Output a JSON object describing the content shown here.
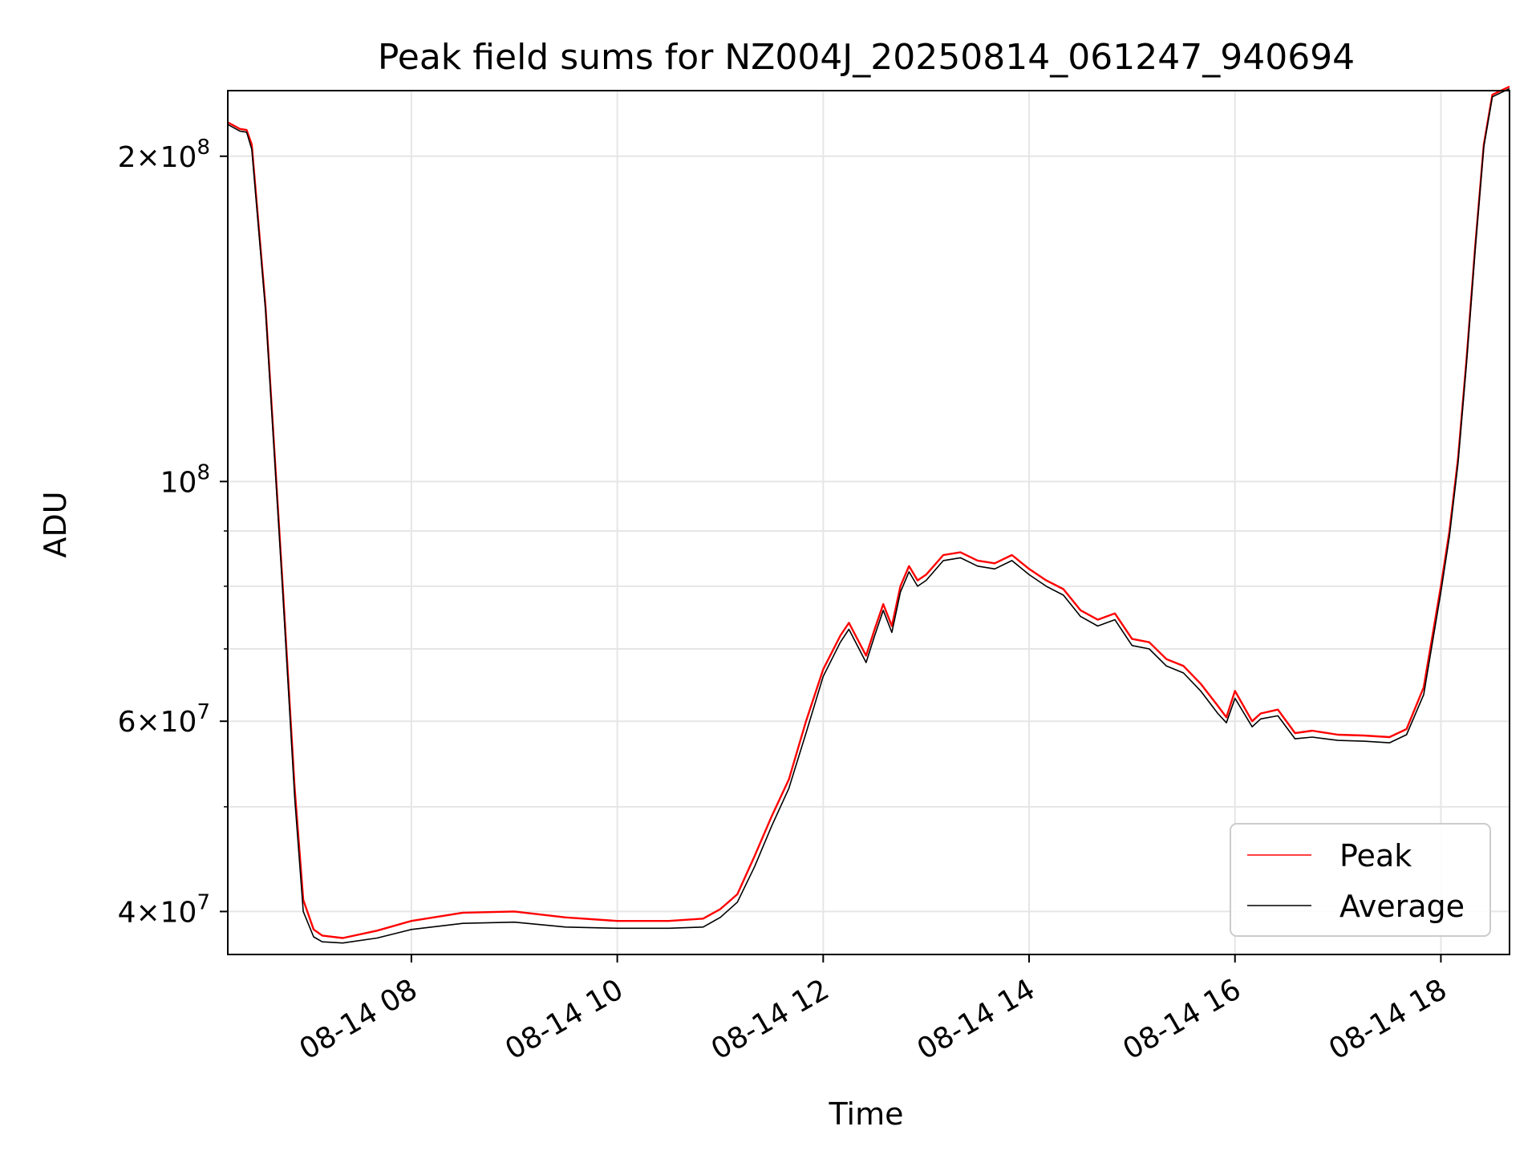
{
  "chart_data": {
    "type": "line",
    "title": "Peak field sums for NZ004J_20250814_061247_940694",
    "xlabel": "Time",
    "ylabel": "ADU",
    "y_scale": "log",
    "grid": true,
    "legend_position": "lower-right",
    "xlim": [
      "2025-08-14 06:13",
      "2025-08-14 18:40"
    ],
    "ylim": [
      36500000,
      230000000
    ],
    "x_ticks": [
      {
        "value": "2025-08-14 08:00",
        "label": "08-14 08"
      },
      {
        "value": "2025-08-14 10:00",
        "label": "08-14 10"
      },
      {
        "value": "2025-08-14 12:00",
        "label": "08-14 12"
      },
      {
        "value": "2025-08-14 14:00",
        "label": "08-14 14"
      },
      {
        "value": "2025-08-14 16:00",
        "label": "08-14 16"
      },
      {
        "value": "2025-08-14 18:00",
        "label": "08-14 18"
      }
    ],
    "y_ticks": [
      {
        "value": 40000000,
        "mantissa": "4",
        "exponent": "7"
      },
      {
        "value": 60000000,
        "mantissa": "6",
        "exponent": "7"
      },
      {
        "value": 100000000,
        "mantissa": "",
        "exponent": "8"
      },
      {
        "value": 200000000,
        "mantissa": "2",
        "exponent": "8"
      }
    ],
    "y_minor_ticks": [
      50000000,
      70000000,
      80000000,
      90000000
    ],
    "series": [
      {
        "name": "Peak",
        "color": "#ff0000",
        "x": [
          "2025-08-14 06:13",
          "2025-08-14 06:20",
          "2025-08-14 06:24",
          "2025-08-14 06:27",
          "2025-08-14 06:35",
          "2025-08-14 06:45",
          "2025-08-14 06:52",
          "2025-08-14 06:57",
          "2025-08-14 07:03",
          "2025-08-14 07:08",
          "2025-08-14 07:20",
          "2025-08-14 07:40",
          "2025-08-14 08:00",
          "2025-08-14 08:30",
          "2025-08-14 09:00",
          "2025-08-14 09:30",
          "2025-08-14 10:00",
          "2025-08-14 10:30",
          "2025-08-14 10:50",
          "2025-08-14 11:00",
          "2025-08-14 11:10",
          "2025-08-14 11:20",
          "2025-08-14 11:30",
          "2025-08-14 11:40",
          "2025-08-14 11:50",
          "2025-08-14 12:00",
          "2025-08-14 12:10",
          "2025-08-14 12:15",
          "2025-08-14 12:25",
          "2025-08-14 12:30",
          "2025-08-14 12:35",
          "2025-08-14 12:40",
          "2025-08-14 12:45",
          "2025-08-14 12:50",
          "2025-08-14 12:55",
          "2025-08-14 13:00",
          "2025-08-14 13:10",
          "2025-08-14 13:20",
          "2025-08-14 13:30",
          "2025-08-14 13:40",
          "2025-08-14 13:50",
          "2025-08-14 14:00",
          "2025-08-14 14:10",
          "2025-08-14 14:20",
          "2025-08-14 14:30",
          "2025-08-14 14:40",
          "2025-08-14 14:50",
          "2025-08-14 15:00",
          "2025-08-14 15:10",
          "2025-08-14 15:20",
          "2025-08-14 15:30",
          "2025-08-14 15:40",
          "2025-08-14 15:50",
          "2025-08-14 15:55",
          "2025-08-14 16:00",
          "2025-08-14 16:10",
          "2025-08-14 16:15",
          "2025-08-14 16:25",
          "2025-08-14 16:35",
          "2025-08-14 16:45",
          "2025-08-14 17:00",
          "2025-08-14 17:15",
          "2025-08-14 17:30",
          "2025-08-14 17:40",
          "2025-08-14 17:50",
          "2025-08-14 18:00",
          "2025-08-14 18:05",
          "2025-08-14 18:10",
          "2025-08-14 18:15",
          "2025-08-14 18:20",
          "2025-08-14 18:25",
          "2025-08-14 18:30",
          "2025-08-14 18:40"
        ],
        "y": [
          215000000,
          212000000,
          211500000,
          205000000,
          145000000,
          80000000,
          52000000,
          41000000,
          38500000,
          38000000,
          37800000,
          38400000,
          39200000,
          39900000,
          40000000,
          39500000,
          39200000,
          39200000,
          39400000,
          40200000,
          41500000,
          45000000,
          49000000,
          53000000,
          60000000,
          67000000,
          72000000,
          74000000,
          69000000,
          73000000,
          77000000,
          73500000,
          80000000,
          83500000,
          81000000,
          82000000,
          85500000,
          86000000,
          84500000,
          84000000,
          85500000,
          83000000,
          81000000,
          79500000,
          76000000,
          74500000,
          75500000,
          71500000,
          71000000,
          68500000,
          67500000,
          65000000,
          62000000,
          60500000,
          64000000,
          60000000,
          61000000,
          61500000,
          58500000,
          58800000,
          58300000,
          58200000,
          58000000,
          59000000,
          64500000,
          80000000,
          90000000,
          105000000,
          130000000,
          165000000,
          205000000,
          228000000,
          232000000
        ]
      },
      {
        "name": "Average",
        "color": "#000000",
        "x": [
          "2025-08-14 06:13",
          "2025-08-14 06:20",
          "2025-08-14 06:24",
          "2025-08-14 06:27",
          "2025-08-14 06:35",
          "2025-08-14 06:45",
          "2025-08-14 06:52",
          "2025-08-14 06:57",
          "2025-08-14 07:03",
          "2025-08-14 07:08",
          "2025-08-14 07:20",
          "2025-08-14 07:40",
          "2025-08-14 08:00",
          "2025-08-14 08:30",
          "2025-08-14 09:00",
          "2025-08-14 09:30",
          "2025-08-14 10:00",
          "2025-08-14 10:30",
          "2025-08-14 10:50",
          "2025-08-14 11:00",
          "2025-08-14 11:10",
          "2025-08-14 11:20",
          "2025-08-14 11:30",
          "2025-08-14 11:40",
          "2025-08-14 11:50",
          "2025-08-14 12:00",
          "2025-08-14 12:10",
          "2025-08-14 12:15",
          "2025-08-14 12:25",
          "2025-08-14 12:30",
          "2025-08-14 12:35",
          "2025-08-14 12:40",
          "2025-08-14 12:45",
          "2025-08-14 12:50",
          "2025-08-14 12:55",
          "2025-08-14 13:00",
          "2025-08-14 13:10",
          "2025-08-14 13:20",
          "2025-08-14 13:30",
          "2025-08-14 13:40",
          "2025-08-14 13:50",
          "2025-08-14 14:00",
          "2025-08-14 14:10",
          "2025-08-14 14:20",
          "2025-08-14 14:30",
          "2025-08-14 14:40",
          "2025-08-14 14:50",
          "2025-08-14 15:00",
          "2025-08-14 15:10",
          "2025-08-14 15:20",
          "2025-08-14 15:30",
          "2025-08-14 15:40",
          "2025-08-14 15:50",
          "2025-08-14 15:55",
          "2025-08-14 16:00",
          "2025-08-14 16:10",
          "2025-08-14 16:15",
          "2025-08-14 16:25",
          "2025-08-14 16:35",
          "2025-08-14 16:45",
          "2025-08-14 17:00",
          "2025-08-14 17:15",
          "2025-08-14 17:30",
          "2025-08-14 17:40",
          "2025-08-14 17:50",
          "2025-08-14 18:00",
          "2025-08-14 18:05",
          "2025-08-14 18:10",
          "2025-08-14 18:15",
          "2025-08-14 18:20",
          "2025-08-14 18:25",
          "2025-08-14 18:30",
          "2025-08-14 18:40"
        ],
        "y": [
          214000000,
          211000000,
          210500000,
          203000000,
          144000000,
          79000000,
          51000000,
          40000000,
          37900000,
          37500000,
          37400000,
          37800000,
          38500000,
          39000000,
          39100000,
          38700000,
          38600000,
          38600000,
          38700000,
          39500000,
          40800000,
          44000000,
          48000000,
          52000000,
          58500000,
          66000000,
          71000000,
          73000000,
          68000000,
          72000000,
          76000000,
          72500000,
          79000000,
          82500000,
          80000000,
          81000000,
          84500000,
          85000000,
          83500000,
          83000000,
          84500000,
          82000000,
          80000000,
          78500000,
          75000000,
          73500000,
          74500000,
          70500000,
          70000000,
          67500000,
          66500000,
          64000000,
          61000000,
          59800000,
          63000000,
          59300000,
          60300000,
          60700000,
          57800000,
          58000000,
          57600000,
          57500000,
          57300000,
          58300000,
          63500000,
          79000000,
          89000000,
          104000000,
          129000000,
          164000000,
          204000000,
          227000000,
          231000000
        ]
      }
    ]
  }
}
